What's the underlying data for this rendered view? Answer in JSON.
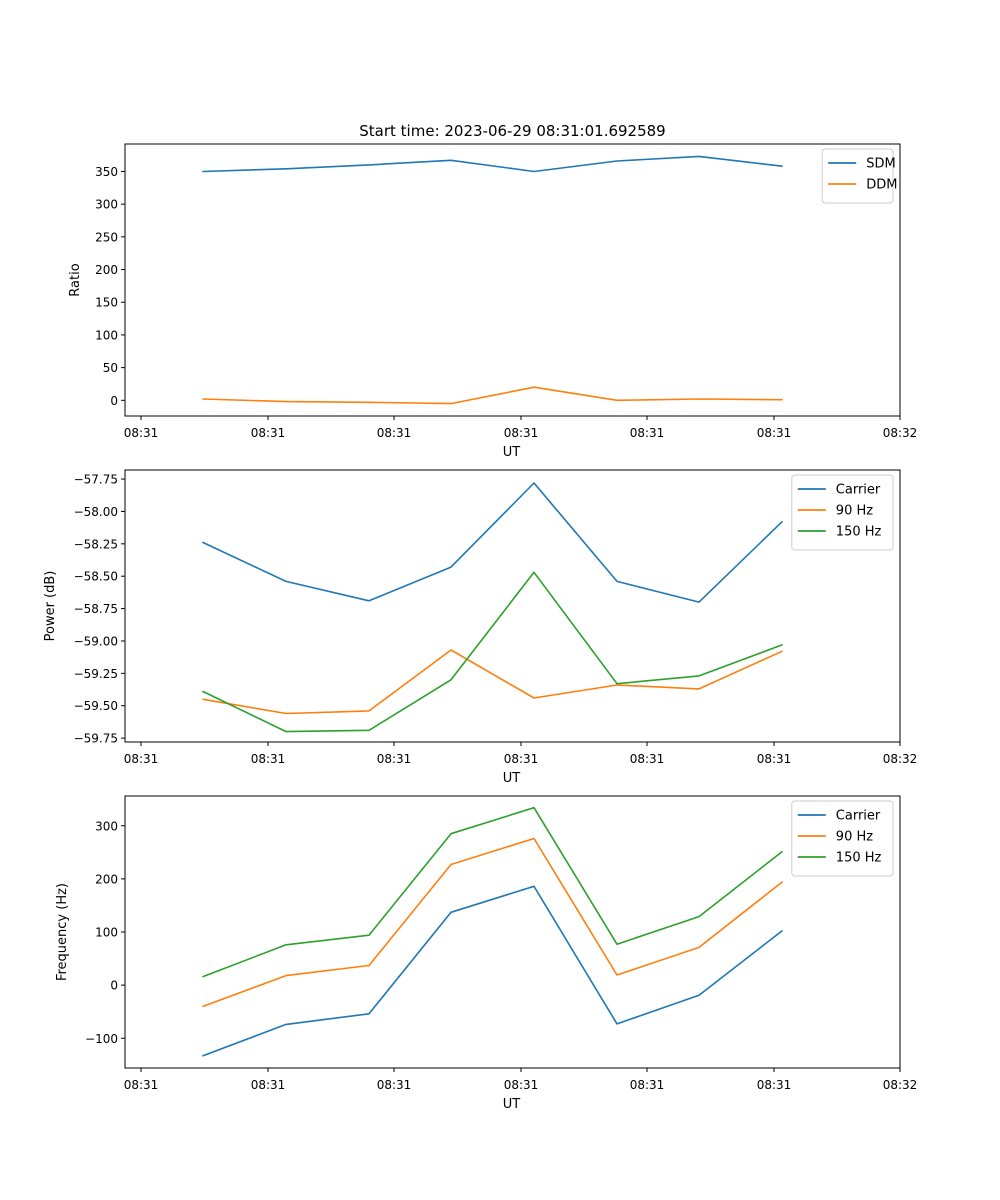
{
  "figure": {
    "title": "Start time: 2023-06-29 08:31:01.692589"
  },
  "chart_data": [
    {
      "type": "line",
      "title": "Start time: 2023-06-29 08:31:01.692589",
      "xlabel": "UT",
      "ylabel": "Ratio",
      "xticks": [
        "08:31",
        "08:31",
        "08:31",
        "08:31",
        "08:31",
        "08:31",
        "08:32"
      ],
      "yticks": [
        0,
        50,
        100,
        150,
        200,
        250,
        300,
        350
      ],
      "ylim": [
        -24,
        392
      ],
      "legend": "top-right",
      "grid": false,
      "series": [
        {
          "name": "SDM",
          "color": "#1f77b4",
          "values": [
            350,
            354,
            360,
            367,
            350,
            366,
            373,
            358
          ]
        },
        {
          "name": "DDM",
          "color": "#ff7f0e",
          "values": [
            2,
            -2,
            -3,
            -5,
            20,
            0,
            2,
            1
          ]
        }
      ]
    },
    {
      "type": "line",
      "title": "",
      "xlabel": "UT",
      "ylabel": "Power (dB)",
      "xticks": [
        "08:31",
        "08:31",
        "08:31",
        "08:31",
        "08:31",
        "08:31",
        "08:32"
      ],
      "yticks": [
        -57.75,
        -58.0,
        -58.25,
        -58.5,
        -58.75,
        -59.0,
        -59.25,
        -59.5,
        -59.75
      ],
      "ytick_labels": [
        "−57.75",
        "−58.00",
        "−58.25",
        "−58.50",
        "−58.75",
        "−59.00",
        "−59.25",
        "−59.50",
        "−59.75"
      ],
      "ylim": [
        -59.78,
        -57.68
      ],
      "legend": "top-right",
      "grid": false,
      "series": [
        {
          "name": "Carrier",
          "color": "#1f77b4",
          "values": [
            -58.24,
            -58.54,
            -58.69,
            -58.43,
            -57.78,
            -58.54,
            -58.7,
            -58.08
          ]
        },
        {
          "name": "90 Hz",
          "color": "#ff7f0e",
          "values": [
            -59.45,
            -59.56,
            -59.54,
            -59.07,
            -59.44,
            -59.34,
            -59.37,
            -59.08
          ]
        },
        {
          "name": "150 Hz",
          "color": "#2ca02c",
          "values": [
            -59.39,
            -59.7,
            -59.69,
            -59.3,
            -58.47,
            -59.33,
            -59.27,
            -59.03
          ]
        }
      ]
    },
    {
      "type": "line",
      "title": "",
      "xlabel": "UT",
      "ylabel": "Frequency (Hz)",
      "xticks": [
        "08:31",
        "08:31",
        "08:31",
        "08:31",
        "08:31",
        "08:31",
        "08:32"
      ],
      "yticks": [
        -100,
        0,
        100,
        200,
        300
      ],
      "ytick_labels": [
        "−100",
        "0",
        "100",
        "200",
        "300"
      ],
      "ylim": [
        -156,
        356
      ],
      "legend": "top-right",
      "grid": false,
      "series": [
        {
          "name": "Carrier",
          "color": "#1f77b4",
          "values": [
            -133,
            -74,
            -54,
            137,
            186,
            -73,
            -19,
            102
          ]
        },
        {
          "name": "90 Hz",
          "color": "#ff7f0e",
          "values": [
            -40,
            18,
            37,
            227,
            276,
            19,
            71,
            194
          ]
        },
        {
          "name": "150 Hz",
          "color": "#2ca02c",
          "values": [
            16,
            76,
            94,
            285,
            334,
            77,
            129,
            251
          ]
        }
      ]
    }
  ]
}
